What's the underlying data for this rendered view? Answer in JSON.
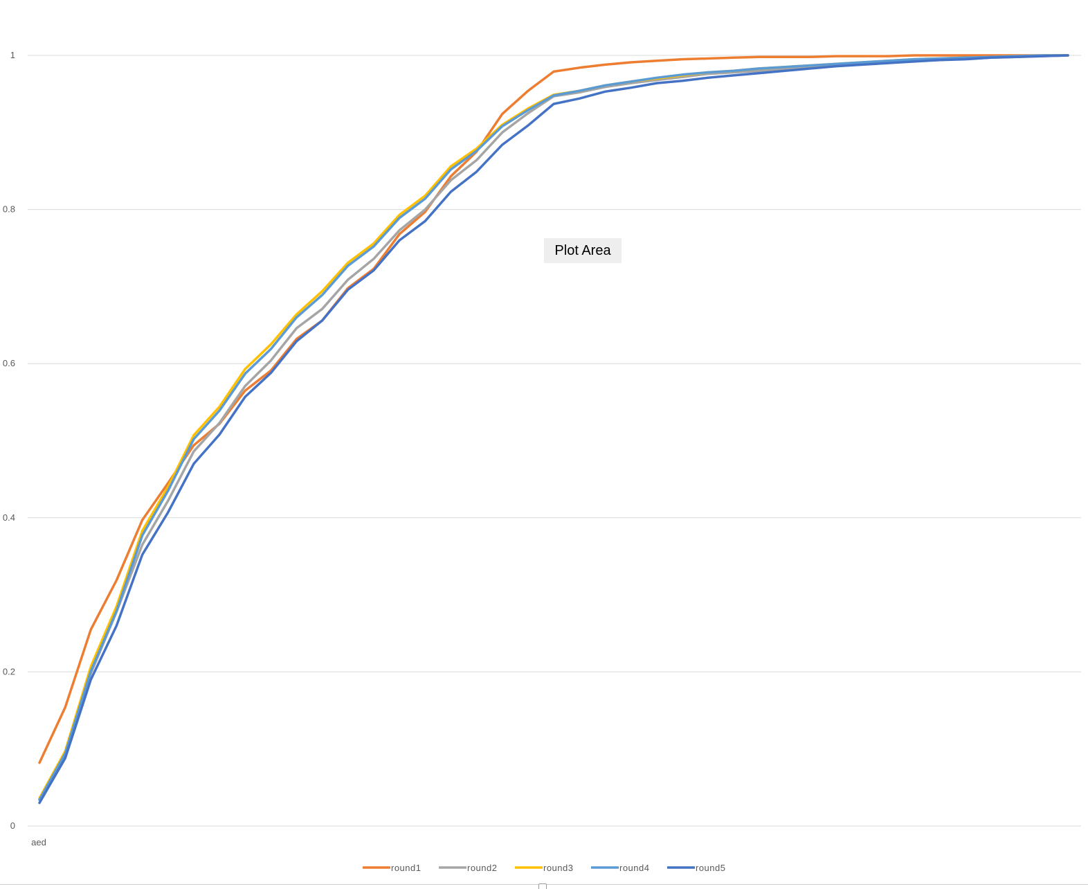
{
  "chart_data": {
    "type": "line",
    "title": "",
    "xlabel": "",
    "ylabel": "",
    "ylim": [
      0,
      1
    ],
    "y_ticks": [
      "0",
      "0.2",
      "0.4",
      "0.6",
      "0.8",
      "1"
    ],
    "y_tick_values": [
      0,
      0.2,
      0.4,
      0.6,
      0.8,
      1
    ],
    "categories": [
      "aed",
      "",
      "",
      "",
      "",
      "",
      "",
      "",
      "",
      "",
      "",
      "",
      "",
      "",
      "",
      "",
      "",
      "",
      "",
      "",
      "",
      "",
      "",
      "",
      "",
      "",
      "",
      "",
      "",
      "",
      "",
      "",
      "",
      "",
      "",
      "",
      "",
      "",
      "",
      "",
      ""
    ],
    "grid": "horizontal",
    "legend_position": "bottom",
    "series": [
      {
        "name": "round1",
        "color": "#ED7D31",
        "values": [
          0.082,
          0.154,
          0.255,
          0.319,
          0.397,
          0.445,
          0.494,
          0.522,
          0.565,
          0.591,
          0.632,
          0.656,
          0.698,
          0.723,
          0.768,
          0.797,
          0.843,
          0.875,
          0.924,
          0.954,
          0.979,
          0.984,
          0.988,
          0.991,
          0.993,
          0.995,
          0.996,
          0.997,
          0.998,
          0.998,
          0.998,
          0.999,
          0.999,
          0.999,
          1.0,
          1.0,
          1.0,
          1.0,
          1.0,
          1.0,
          1.0
        ]
      },
      {
        "name": "round2",
        "color": "#A5A5A5",
        "values": [
          0.035,
          0.095,
          0.198,
          0.278,
          0.365,
          0.422,
          0.486,
          0.523,
          0.571,
          0.604,
          0.646,
          0.671,
          0.709,
          0.736,
          0.773,
          0.8,
          0.838,
          0.864,
          0.9,
          0.925,
          0.947,
          0.952,
          0.959,
          0.964,
          0.968,
          0.972,
          0.976,
          0.978,
          0.98,
          0.983,
          0.985,
          0.987,
          0.989,
          0.991,
          0.993,
          0.994,
          0.996,
          0.997,
          0.998,
          0.999,
          1.0
        ]
      },
      {
        "name": "round3",
        "color": "#FFC000",
        "values": [
          0.036,
          0.097,
          0.207,
          0.285,
          0.383,
          0.44,
          0.507,
          0.544,
          0.593,
          0.625,
          0.664,
          0.694,
          0.731,
          0.756,
          0.793,
          0.818,
          0.856,
          0.879,
          0.91,
          0.931,
          0.949,
          0.954,
          0.961,
          0.966,
          0.97,
          0.974,
          0.978,
          0.98,
          0.983,
          0.985,
          0.987,
          0.989,
          0.991,
          0.993,
          0.995,
          0.996,
          0.997,
          0.998,
          0.999,
          1.0,
          1.0
        ]
      },
      {
        "name": "round4",
        "color": "#5B9BD5",
        "values": [
          0.034,
          0.094,
          0.201,
          0.279,
          0.377,
          0.435,
          0.502,
          0.539,
          0.587,
          0.619,
          0.66,
          0.689,
          0.727,
          0.752,
          0.789,
          0.814,
          0.852,
          0.876,
          0.908,
          0.929,
          0.948,
          0.954,
          0.961,
          0.966,
          0.971,
          0.975,
          0.978,
          0.98,
          0.983,
          0.985,
          0.987,
          0.989,
          0.991,
          0.993,
          0.995,
          0.996,
          0.997,
          0.998,
          0.999,
          1.0,
          1.0
        ]
      },
      {
        "name": "round5",
        "color": "#4472C4",
        "values": [
          0.03,
          0.088,
          0.19,
          0.26,
          0.352,
          0.407,
          0.47,
          0.508,
          0.557,
          0.588,
          0.629,
          0.656,
          0.696,
          0.721,
          0.76,
          0.785,
          0.823,
          0.849,
          0.884,
          0.909,
          0.937,
          0.944,
          0.953,
          0.958,
          0.964,
          0.967,
          0.971,
          0.974,
          0.977,
          0.98,
          0.983,
          0.986,
          0.988,
          0.99,
          0.992,
          0.994,
          0.995,
          0.997,
          0.998,
          0.999,
          1.0
        ]
      }
    ]
  },
  "ui": {
    "plot_area_label": "Plot Area"
  }
}
